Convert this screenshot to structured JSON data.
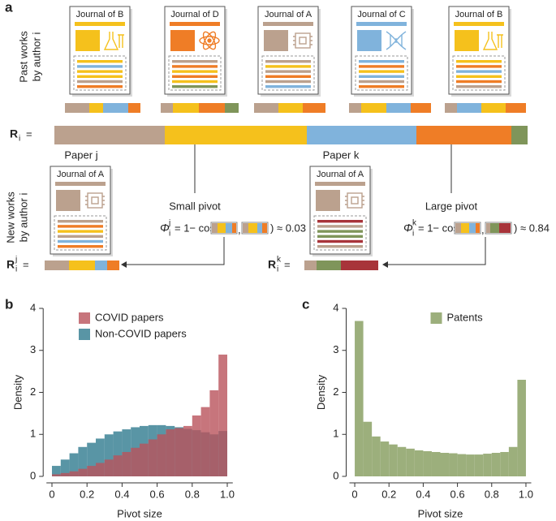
{
  "diagram": {
    "label": "a",
    "past_label": [
      "Past works",
      "by author i"
    ],
    "past_journals": [
      "Journal of B",
      "Journal of D",
      "Journal of A",
      "Journal of C",
      "Journal of B"
    ],
    "r_main": {
      "symbol": "R",
      "sub": "i",
      "tail": "="
    },
    "paper_j": "Paper j",
    "paper_k": "Paper k",
    "new_label": [
      "New works",
      "by author i"
    ],
    "new_journals": [
      "Journal of A",
      "Journal of A"
    ],
    "small_pivot": "Small pivot",
    "large_pivot": "Large pivot",
    "formula_j": {
      "symbol": "Φ",
      "sup": "j",
      "sub": "i",
      "lhs": "= 1− cos (",
      "sep": ",",
      "rhs": ") ≈ 0.03"
    },
    "formula_k": {
      "symbol": "Φ",
      "sup": "k",
      "sub": "i",
      "lhs": "= 1− cos (",
      "sep": ",",
      "rhs": ") ≈ 0.84"
    },
    "r_j": {
      "symbol": "R",
      "sub": "i",
      "sup": "j",
      "tail": "="
    },
    "r_k": {
      "symbol": "R",
      "sub": "i",
      "sup": "k",
      "tail": "="
    }
  },
  "chart_data": [
    {
      "type": "histogram",
      "panel": "b",
      "xlabel": "Pivot size",
      "ylabel": "Density",
      "bins": [
        0,
        0.05,
        0.1,
        0.15,
        0.2,
        0.25,
        0.3,
        0.35,
        0.4,
        0.45,
        0.5,
        0.55,
        0.6,
        0.65,
        0.7,
        0.75,
        0.8,
        0.85,
        0.9,
        0.95,
        1.0
      ],
      "series": [
        {
          "name": "COVID papers",
          "color": "#b9525b",
          "values": [
            0.05,
            0.08,
            0.12,
            0.18,
            0.25,
            0.32,
            0.4,
            0.5,
            0.58,
            0.68,
            0.78,
            0.88,
            1.0,
            1.12,
            1.15,
            1.2,
            1.45,
            1.65,
            2.05,
            2.9
          ]
        },
        {
          "name": "Non-COVID papers",
          "color": "#2f7b8e",
          "values": [
            0.25,
            0.4,
            0.55,
            0.7,
            0.8,
            0.9,
            1.0,
            1.07,
            1.12,
            1.17,
            1.2,
            1.22,
            1.22,
            1.2,
            1.17,
            1.13,
            1.1,
            1.05,
            1.0,
            1.08
          ]
        }
      ],
      "alpha": 0.8,
      "xlim": [
        -0.05,
        1.05
      ],
      "xticks": [
        0,
        0.2,
        0.4,
        0.6,
        0.8,
        {
          "value": 1.0,
          "label": "1.0"
        }
      ],
      "ylim": [
        0,
        4
      ],
      "yticks": [
        0,
        1,
        2,
        3,
        4
      ],
      "legend": "upper center"
    },
    {
      "type": "histogram",
      "panel": "c",
      "xlabel": "Pivot size",
      "ylabel": "Density",
      "bins": [
        0,
        0.05,
        0.1,
        0.15,
        0.2,
        0.25,
        0.3,
        0.35,
        0.4,
        0.45,
        0.5,
        0.55,
        0.6,
        0.65,
        0.7,
        0.75,
        0.8,
        0.85,
        0.9,
        0.95,
        1.0
      ],
      "series": [
        {
          "name": "Patents",
          "color": "#9caf7c",
          "values": [
            3.7,
            1.3,
            0.95,
            0.83,
            0.76,
            0.7,
            0.66,
            0.62,
            0.6,
            0.58,
            0.56,
            0.55,
            0.53,
            0.52,
            0.52,
            0.54,
            0.56,
            0.58,
            0.7,
            2.3
          ]
        }
      ],
      "alpha": 1,
      "xlim": [
        -0.05,
        1.05
      ],
      "xticks": [
        0,
        0.2,
        0.4,
        0.6,
        0.8,
        {
          "value": 1.0,
          "label": "1.0"
        }
      ],
      "ylim": [
        0,
        4
      ],
      "yticks": [
        0,
        1,
        2,
        3,
        4
      ],
      "legend": "upper right"
    }
  ]
}
